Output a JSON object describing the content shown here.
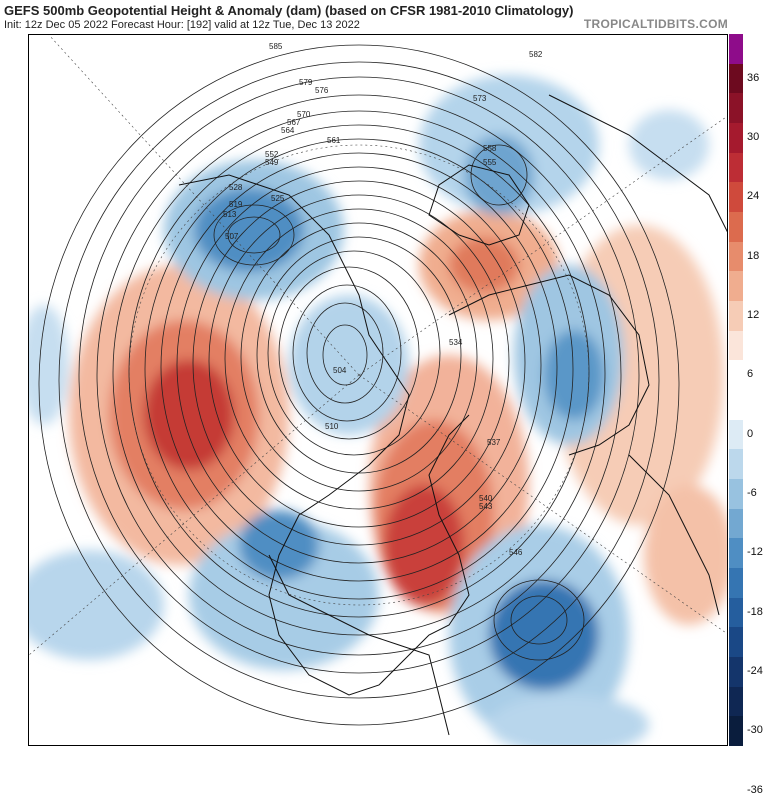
{
  "header": {
    "title": "GEFS 500mb Geopotential Height & Anomaly (dam) (based on CFSR 1981-2010 Climatology)",
    "subtitle": "Init: 12z Dec 05 2022   Forecast Hour: [192]   valid at 12z Tue, Dec 13 2022",
    "brand": "TROPICALTIDBITS.COM"
  },
  "colorbar": {
    "labels": [
      "36",
      "30",
      "24",
      "18",
      "12",
      "6",
      "0",
      "-6",
      "-12",
      "-18",
      "-24",
      "-30",
      "-36"
    ],
    "colors": [
      "#8e0c8a",
      "#6d0a1f",
      "#8b1228",
      "#a51a2e",
      "#bd2d35",
      "#cf4a3c",
      "#dc6b4e",
      "#e78c6c",
      "#f0ad8f",
      "#f6ccb6",
      "#fbe5da",
      "#ffffff",
      "#ffffff",
      "#ddebf5",
      "#bcd8ec",
      "#98c2e0",
      "#73a8d1",
      "#4f8ec3",
      "#3575b2",
      "#255e9e",
      "#1a4886",
      "#14356b",
      "#0f2753",
      "#0a1d3d"
    ]
  },
  "map": {
    "contour_labels": [
      "585",
      "582",
      "579",
      "576",
      "573",
      "570",
      "567",
      "564",
      "561",
      "558",
      "555",
      "552",
      "549",
      "546",
      "543",
      "540",
      "537",
      "534",
      "528",
      "525",
      "519",
      "513",
      "510",
      "507",
      "504"
    ]
  }
}
